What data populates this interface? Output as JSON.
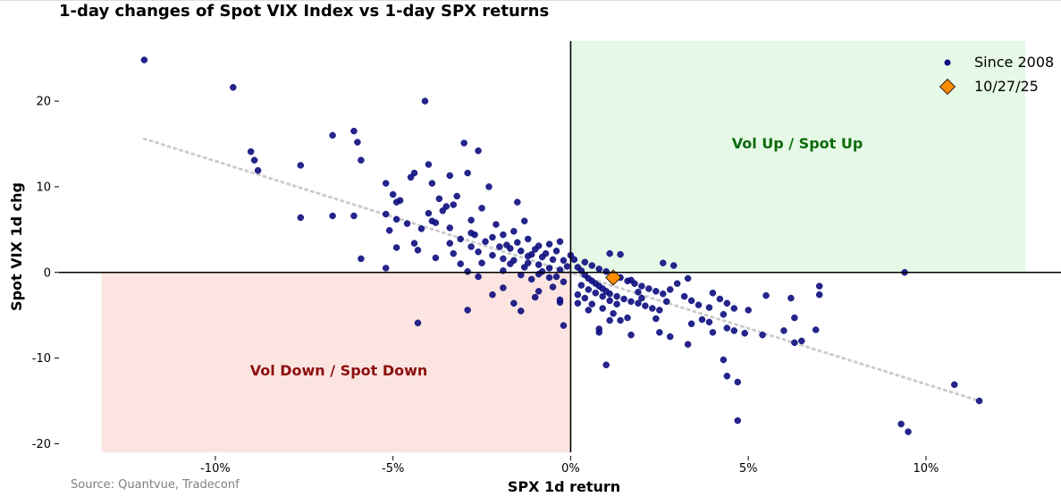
{
  "chart_data": {
    "type": "scatter",
    "title": "1-day changes of Spot VIX Index vs 1-day SPX returns",
    "xlabel": "SPX 1d return",
    "ylabel": "Spot VIX 1d chg",
    "xlim": [
      -14.4,
      13.8
    ],
    "ylim": [
      -21,
      27
    ],
    "x_ticks": [
      -10,
      -5,
      0,
      5,
      10
    ],
    "x_tick_labels": [
      "-10%",
      "-5%",
      "0%",
      "5%",
      "10%"
    ],
    "y_ticks": [
      -20,
      -10,
      0,
      10,
      20
    ],
    "y_tick_labels": [
      "-20",
      "-10",
      "0",
      "10",
      "20"
    ],
    "grid": false,
    "legend_position": "top-right",
    "colors": {
      "points": "#0d0d80",
      "highlight": "#ff8c00",
      "trend": "#cccccc",
      "vol_up_region": "#e6f9e6",
      "vol_down_region": "#fce4e0"
    },
    "regions": [
      {
        "name": "Vol Up / Spot Up",
        "x": [
          0,
          12.8
        ],
        "y": [
          0,
          27
        ]
      },
      {
        "name": "Vol Down / Spot Down",
        "x": [
          -13.2,
          0
        ],
        "y": [
          -21,
          0
        ]
      }
    ],
    "trendline": {
      "x": [
        -12,
        11.5
      ],
      "y": [
        15.6,
        -15.0
      ]
    },
    "series": [
      {
        "name": "Since 2008",
        "points": [
          [
            -12.0,
            24.8
          ],
          [
            -9.5,
            21.6
          ],
          [
            -4.1,
            20.0
          ],
          [
            -6.1,
            16.5
          ],
          [
            -6.7,
            16.0
          ],
          [
            -6.0,
            15.2
          ],
          [
            -3.0,
            15.1
          ],
          [
            -2.6,
            14.2
          ],
          [
            -9.0,
            14.1
          ],
          [
            -8.9,
            13.1
          ],
          [
            -5.9,
            13.1
          ],
          [
            -4.0,
            12.6
          ],
          [
            -7.6,
            12.5
          ],
          [
            -8.8,
            11.9
          ],
          [
            -2.9,
            11.6
          ],
          [
            -4.4,
            11.6
          ],
          [
            -3.4,
            11.3
          ],
          [
            -4.5,
            11.1
          ],
          [
            -5.2,
            10.4
          ],
          [
            -3.9,
            10.4
          ],
          [
            -2.3,
            10.0
          ],
          [
            -5.0,
            9.1
          ],
          [
            -3.2,
            8.9
          ],
          [
            -3.7,
            8.6
          ],
          [
            -4.8,
            8.4
          ],
          [
            -4.9,
            8.2
          ],
          [
            -3.3,
            7.9
          ],
          [
            -1.5,
            8.2
          ],
          [
            -3.5,
            7.7
          ],
          [
            -2.5,
            7.5
          ],
          [
            -3.6,
            7.2
          ],
          [
            -5.2,
            6.8
          ],
          [
            -4.0,
            6.9
          ],
          [
            -6.7,
            6.6
          ],
          [
            -6.1,
            6.6
          ],
          [
            -7.6,
            6.4
          ],
          [
            -4.9,
            6.2
          ],
          [
            -3.9,
            6.0
          ],
          [
            -2.8,
            6.1
          ],
          [
            -1.3,
            6.0
          ],
          [
            -4.6,
            5.7
          ],
          [
            -4.2,
            5.1
          ],
          [
            -5.1,
            4.9
          ],
          [
            -3.4,
            5.2
          ],
          [
            -2.8,
            4.6
          ],
          [
            -4.4,
            3.4
          ],
          [
            -4.3,
            2.6
          ],
          [
            -4.9,
            2.9
          ],
          [
            -3.8,
            1.7
          ],
          [
            -5.9,
            1.6
          ],
          [
            -5.2,
            0.5
          ],
          [
            -2.9,
            0.1
          ],
          [
            -2.6,
            2.4
          ],
          [
            -2.2,
            2.0
          ],
          [
            -1.9,
            1.6
          ],
          [
            -1.6,
            1.4
          ],
          [
            -1.2,
            1.1
          ],
          [
            -0.9,
            0.9
          ],
          [
            -0.6,
            0.5
          ],
          [
            -0.3,
            0.3
          ],
          [
            -2.0,
            3.0
          ],
          [
            -1.7,
            2.8
          ],
          [
            -1.4,
            2.5
          ],
          [
            -1.1,
            2.1
          ],
          [
            -0.8,
            1.8
          ],
          [
            -0.5,
            1.5
          ],
          [
            -2.4,
            3.6
          ],
          [
            -1.8,
            3.2
          ],
          [
            -1.5,
            3.5
          ],
          [
            -1.0,
            2.7
          ],
          [
            -0.7,
            2.2
          ],
          [
            -0.2,
            1.4
          ],
          [
            -3.1,
            3.9
          ],
          [
            -2.7,
            4.4
          ],
          [
            -2.2,
            4.1
          ],
          [
            -1.2,
            3.9
          ],
          [
            -0.9,
            3.1
          ],
          [
            -0.4,
            2.5
          ],
          [
            -2.1,
            5.6
          ],
          [
            -1.6,
            4.8
          ],
          [
            -1.9,
            4.4
          ],
          [
            -0.6,
            3.3
          ],
          [
            -0.3,
            3.6
          ],
          [
            0.0,
            2.0
          ],
          [
            -3.3,
            2.2
          ],
          [
            -2.5,
            1.1
          ],
          [
            -1.9,
            0.2
          ],
          [
            -1.4,
            -0.3
          ],
          [
            -0.9,
            -0.2
          ],
          [
            -0.6,
            -0.6
          ],
          [
            -1.3,
            0.6
          ],
          [
            -1.1,
            -0.8
          ],
          [
            -0.8,
            0.1
          ],
          [
            -0.4,
            -0.5
          ],
          [
            -0.1,
            0.7
          ],
          [
            -0.2,
            -1.1
          ],
          [
            -2.6,
            -0.5
          ],
          [
            -2.2,
            -2.6
          ],
          [
            -1.9,
            -1.8
          ],
          [
            -1.6,
            -3.6
          ],
          [
            -1.4,
            -4.5
          ],
          [
            -0.9,
            -2.2
          ],
          [
            -0.5,
            -1.7
          ],
          [
            -0.3,
            -3.5
          ],
          [
            -0.2,
            -6.2
          ],
          [
            -2.9,
            -4.4
          ],
          [
            -4.3,
            -5.9
          ],
          [
            -1.0,
            -2.9
          ],
          [
            -3.1,
            1.0
          ],
          [
            -3.4,
            3.4
          ],
          [
            -3.8,
            5.8
          ],
          [
            -2.8,
            3.0
          ],
          [
            -1.7,
            1.0
          ],
          [
            -1.2,
            1.9
          ],
          [
            0.1,
            1.5
          ],
          [
            0.2,
            0.6
          ],
          [
            0.3,
            0.2
          ],
          [
            0.4,
            -0.3
          ],
          [
            0.5,
            -0.7
          ],
          [
            0.6,
            -1.0
          ],
          [
            0.7,
            -1.3
          ],
          [
            0.8,
            -1.6
          ],
          [
            0.9,
            -1.9
          ],
          [
            1.0,
            -2.2
          ],
          [
            1.1,
            -2.5
          ],
          [
            1.3,
            -2.8
          ],
          [
            1.5,
            -3.1
          ],
          [
            1.7,
            -3.4
          ],
          [
            1.9,
            -3.6
          ],
          [
            2.1,
            -3.9
          ],
          [
            2.3,
            -4.2
          ],
          [
            2.5,
            -4.4
          ],
          [
            0.3,
            -1.5
          ],
          [
            0.5,
            -2.0
          ],
          [
            0.7,
            -2.4
          ],
          [
            0.9,
            -2.8
          ],
          [
            1.1,
            -3.3
          ],
          [
            1.3,
            -3.7
          ],
          [
            0.4,
            1.2
          ],
          [
            0.6,
            0.8
          ],
          [
            0.8,
            0.4
          ],
          [
            1.0,
            0.1
          ],
          [
            1.2,
            -0.3
          ],
          [
            1.4,
            -0.6
          ],
          [
            1.6,
            -1.0
          ],
          [
            1.8,
            -1.3
          ],
          [
            2.0,
            -1.6
          ],
          [
            2.2,
            -1.9
          ],
          [
            2.4,
            -2.2
          ],
          [
            2.6,
            -2.5
          ],
          [
            0.2,
            -2.6
          ],
          [
            0.4,
            -3.0
          ],
          [
            0.6,
            -3.7
          ],
          [
            0.9,
            -4.2
          ],
          [
            1.2,
            -4.8
          ],
          [
            1.4,
            -5.6
          ],
          [
            1.1,
            2.2
          ],
          [
            1.4,
            2.1
          ],
          [
            2.6,
            1.1
          ],
          [
            2.9,
            0.8
          ],
          [
            1.7,
            -0.9
          ],
          [
            1.9,
            -2.3
          ],
          [
            2.0,
            -3.0
          ],
          [
            2.7,
            -3.4
          ],
          [
            2.8,
            -2.0
          ],
          [
            3.0,
            -1.3
          ],
          [
            3.2,
            -2.8
          ],
          [
            3.4,
            -3.3
          ],
          [
            3.6,
            -3.8
          ],
          [
            3.9,
            -4.1
          ],
          [
            4.2,
            -3.1
          ],
          [
            4.4,
            -3.6
          ],
          [
            4.6,
            -4.2
          ],
          [
            5.0,
            -4.4
          ],
          [
            3.7,
            -5.5
          ],
          [
            3.9,
            -5.8
          ],
          [
            4.3,
            -4.9
          ],
          [
            4.4,
            -6.5
          ],
          [
            4.6,
            -6.8
          ],
          [
            4.9,
            -7.1
          ],
          [
            5.5,
            -2.7
          ],
          [
            6.2,
            -3.0
          ],
          [
            6.3,
            -5.3
          ],
          [
            6.0,
            -6.8
          ],
          [
            6.3,
            -8.2
          ],
          [
            6.5,
            -8.0
          ],
          [
            5.4,
            -7.3
          ],
          [
            6.9,
            -6.7
          ],
          [
            7.0,
            -1.6
          ],
          [
            7.0,
            -2.6
          ],
          [
            4.0,
            -2.4
          ],
          [
            3.3,
            -0.7
          ],
          [
            4.0,
            -7.0
          ],
          [
            3.3,
            -8.4
          ],
          [
            2.8,
            -7.5
          ],
          [
            2.5,
            -7.0
          ],
          [
            1.7,
            -7.3
          ],
          [
            0.8,
            -7.0
          ],
          [
            0.8,
            -6.6
          ],
          [
            1.1,
            -5.6
          ],
          [
            2.4,
            -5.4
          ],
          [
            3.4,
            -6.0
          ],
          [
            1.0,
            -10.8
          ],
          [
            4.3,
            -10.2
          ],
          [
            4.4,
            -12.1
          ],
          [
            4.7,
            -12.8
          ],
          [
            4.7,
            -17.3
          ],
          [
            9.3,
            -17.7
          ],
          [
            9.5,
            -18.6
          ],
          [
            10.8,
            -13.1
          ],
          [
            11.5,
            -15.0
          ],
          [
            9.4,
            0.0
          ],
          [
            0.5,
            -4.4
          ],
          [
            0.2,
            -3.6
          ],
          [
            -0.3,
            -3.2
          ],
          [
            1.6,
            -5.3
          ]
        ]
      },
      {
        "name": "10/27/25",
        "points": [
          [
            1.2,
            -0.6
          ]
        ]
      }
    ],
    "source": "Source: Quantvue, Tradeconf"
  }
}
